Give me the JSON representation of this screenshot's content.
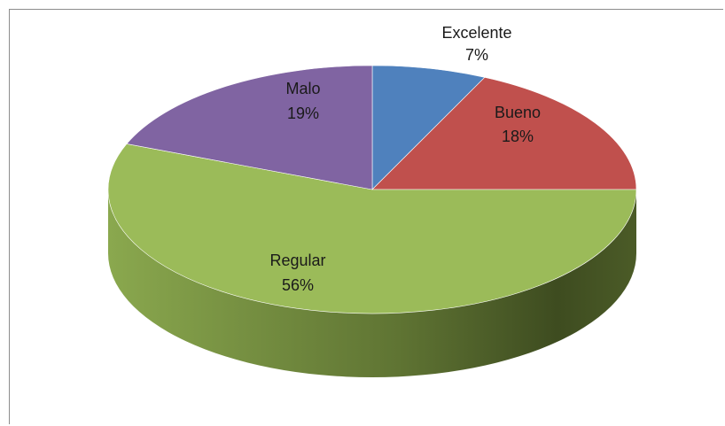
{
  "chart_data": {
    "type": "pie",
    "title": "",
    "slices": [
      {
        "label": "Excelente",
        "value": 7,
        "value_label": "7%",
        "color": "#4f81bd"
      },
      {
        "label": "Bueno",
        "value": 18,
        "value_label": "18%",
        "color": "#c0504d"
      },
      {
        "label": "Regular",
        "value": 56,
        "value_label": "56%",
        "color": "#9bbb59"
      },
      {
        "label": "Malo",
        "value": 19,
        "value_label": "19%",
        "color": "#8064a2"
      }
    ],
    "style": "3d",
    "legend": "none",
    "data_labels": "category-and-percent"
  }
}
